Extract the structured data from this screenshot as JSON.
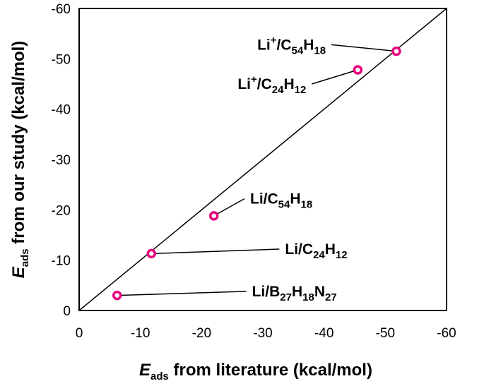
{
  "chart_data": {
    "type": "scatter",
    "title": "",
    "xlabel": {
      "prefix": "E",
      "sub": "ads",
      "rest": " from literature (kcal/mol)"
    },
    "ylabel": {
      "prefix": "E",
      "sub": "ads",
      "rest": " from our study  (kcal/mol)"
    },
    "xlim": [
      0,
      -60
    ],
    "ylim": [
      0,
      -60
    ],
    "x_ticks": [
      0,
      -10,
      -20,
      -30,
      -40,
      -50,
      -60
    ],
    "y_ticks": [
      0,
      -10,
      -20,
      -30,
      -40,
      -50,
      -60
    ],
    "grid": false,
    "reference_line": {
      "type": "y=x",
      "color": "#000000"
    },
    "marker_color": "#e6007e",
    "points": [
      {
        "x": -6.2,
        "y": -3.0,
        "label": [
          {
            "t": "Li/B",
            "s": "n"
          },
          {
            "t": "27",
            "s": "sub"
          },
          {
            "t": "H",
            "s": "n"
          },
          {
            "t": "18",
            "s": "sub"
          },
          {
            "t": "N",
            "s": "n"
          },
          {
            "t": "27",
            "s": "sub"
          }
        ],
        "label_anchor": {
          "x": -27.3,
          "y": -3.8
        }
      },
      {
        "x": -11.8,
        "y": -11.3,
        "label": [
          {
            "t": "Li/C",
            "s": "n"
          },
          {
            "t": "24",
            "s": "sub"
          },
          {
            "t": "H",
            "s": "n"
          },
          {
            "t": "12",
            "s": "sub"
          }
        ],
        "label_anchor": {
          "x": -32.7,
          "y": -12.2
        }
      },
      {
        "x": -22.0,
        "y": -18.8,
        "label": [
          {
            "t": "Li/C",
            "s": "n"
          },
          {
            "t": "54",
            "s": "sub"
          },
          {
            "t": "H",
            "s": "n"
          },
          {
            "t": "18",
            "s": "sub"
          }
        ],
        "label_anchor": {
          "x": -27.0,
          "y": -22.2
        }
      },
      {
        "x": -45.5,
        "y": -47.8,
        "label": [
          {
            "t": "Li",
            "s": "n"
          },
          {
            "t": "+",
            "s": "sup"
          },
          {
            "t": "/C",
            "s": "n"
          },
          {
            "t": "24",
            "s": "sub"
          },
          {
            "t": "H",
            "s": "n"
          },
          {
            "t": "12",
            "s": "sub"
          }
        ],
        "label_anchor": {
          "x": -38.0,
          "y": -45.0
        }
      },
      {
        "x": -51.8,
        "y": -51.5,
        "label": [
          {
            "t": "Li",
            "s": "n"
          },
          {
            "t": "+",
            "s": "sup"
          },
          {
            "t": "/C",
            "s": "n"
          },
          {
            "t": "54",
            "s": "sub"
          },
          {
            "t": "H",
            "s": "n"
          },
          {
            "t": "18",
            "s": "sub"
          }
        ],
        "label_anchor": {
          "x": -41.2,
          "y": -52.8
        }
      }
    ]
  }
}
